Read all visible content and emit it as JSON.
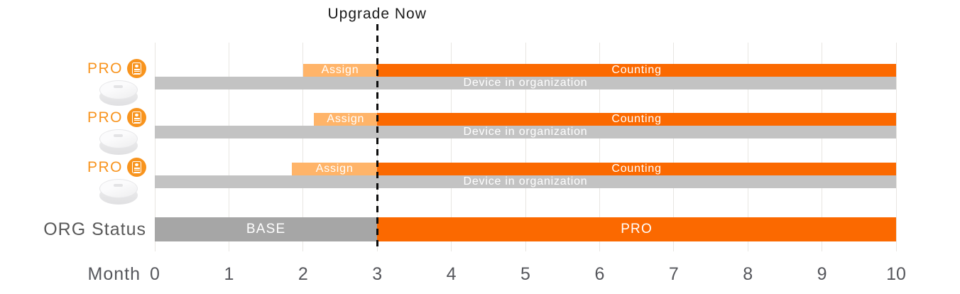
{
  "title": "Upgrade Now",
  "colors": {
    "orange": "#fb6900",
    "assign_orange": "#ffb469",
    "device_gray": "#c3c3c3",
    "base_gray": "#a6a6a6",
    "grid": "#e8e6e2",
    "axis_text": "#56575c",
    "badge_orange": "#f8941e"
  },
  "chart_data": {
    "type": "gantt-timeline",
    "title": "Upgrade Now",
    "x_axis": {
      "label": "Month",
      "min": 0,
      "max": 10,
      "ticks": [
        "0",
        "1",
        "2",
        "3",
        "4",
        "5",
        "6",
        "7",
        "8",
        "9",
        "10"
      ]
    },
    "upgrade_month": 3,
    "legend_position": "none",
    "grid": "vertical-months",
    "devices": [
      {
        "pro_label": "PRO",
        "assign": {
          "label": "Assign",
          "start": 2.0,
          "end": 3
        },
        "counting": {
          "label": "Counting",
          "start": 3,
          "end": 10
        },
        "org_bar": {
          "label": "Device in organization",
          "start": 0,
          "end": 10
        }
      },
      {
        "pro_label": "PRO",
        "assign": {
          "label": "Assign",
          "start": 2.15,
          "end": 3
        },
        "counting": {
          "label": "Counting",
          "start": 3,
          "end": 10
        },
        "org_bar": {
          "label": "Device in organization",
          "start": 0,
          "end": 10
        }
      },
      {
        "pro_label": "PRO",
        "assign": {
          "label": "Assign",
          "start": 1.85,
          "end": 3
        },
        "counting": {
          "label": "Counting",
          "start": 3,
          "end": 10
        },
        "org_bar": {
          "label": "Device in organization",
          "start": 0,
          "end": 10
        }
      }
    ],
    "org_status": {
      "label": "ORG Status",
      "segments": [
        {
          "label": "BASE",
          "start": 0,
          "end": 3,
          "color": "#a6a6a6"
        },
        {
          "label": "PRO",
          "start": 3,
          "end": 10,
          "color": "#fb6900"
        }
      ]
    }
  }
}
